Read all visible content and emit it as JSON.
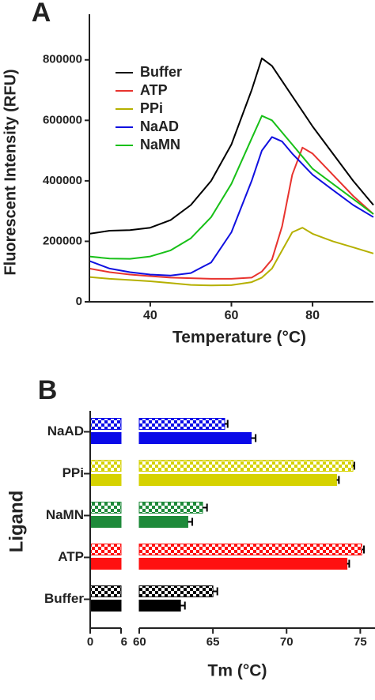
{
  "chart_data": [
    {
      "type": "line",
      "label": "A",
      "xlabel": "Temperature (°C)",
      "ylabel": "Fluorescent Intensity (RFU)",
      "x": [
        25,
        30,
        35,
        40,
        45,
        50,
        55,
        60,
        65,
        67.5,
        70,
        72.5,
        75,
        77.5,
        80,
        85,
        90,
        95
      ],
      "series": [
        {
          "name": "Buffer",
          "color": "#000000",
          "values": [
            225000,
            235000,
            237000,
            245000,
            270000,
            320000,
            400000,
            520000,
            700000,
            805000,
            780000,
            730000,
            680000,
            630000,
            580000,
            490000,
            400000,
            320000
          ]
        },
        {
          "name": "ATP",
          "color": "#e8332e",
          "values": [
            110000,
            98000,
            90000,
            85000,
            80000,
            78000,
            76000,
            76000,
            80000,
            100000,
            140000,
            250000,
            420000,
            510000,
            490000,
            420000,
            350000,
            290000
          ]
        },
        {
          "name": "PPi",
          "color": "#b5b000",
          "values": [
            82000,
            76000,
            72000,
            68000,
            62000,
            56000,
            54000,
            55000,
            65000,
            80000,
            110000,
            170000,
            230000,
            245000,
            225000,
            200000,
            180000,
            160000
          ]
        },
        {
          "name": "NaAD",
          "color": "#1010e0",
          "values": [
            135000,
            110000,
            98000,
            90000,
            87000,
            95000,
            130000,
            230000,
            400000,
            500000,
            545000,
            530000,
            490000,
            455000,
            420000,
            370000,
            320000,
            280000
          ]
        },
        {
          "name": "NaMN",
          "color": "#18c018",
          "values": [
            150000,
            143000,
            142000,
            150000,
            170000,
            210000,
            280000,
            390000,
            540000,
            615000,
            600000,
            560000,
            520000,
            480000,
            440000,
            390000,
            340000,
            290000
          ]
        }
      ],
      "xlim": [
        25,
        95
      ],
      "xticks": [
        40,
        60,
        80
      ],
      "ylim": [
        0,
        930000
      ],
      "yticks": [
        0,
        200000,
        400000,
        600000,
        800000
      ],
      "legend": "top-left"
    },
    {
      "type": "hbar",
      "label": "B",
      "xlabel": "Tm (°C)",
      "ylabel": "Ligand",
      "categories": [
        "NaAD",
        "PPi",
        "NaMN",
        "ATP",
        "Buffer"
      ],
      "colors": [
        "#0a0ae8",
        "#d6d200",
        "#1e8a3a",
        "#ff1010",
        "#000000"
      ],
      "series": [
        {
          "pattern": "checkered",
          "values": [
            65.8,
            74.5,
            64.3,
            75.1,
            65.0
          ],
          "errors": [
            0.2,
            0.1,
            0.3,
            0.15,
            0.3
          ]
        },
        {
          "pattern": "solid",
          "values": [
            67.6,
            73.4,
            63.3,
            74.1,
            62.8
          ],
          "errors": [
            0.3,
            0.15,
            0.3,
            0.15,
            0.3
          ]
        }
      ],
      "xlim": [
        0,
        76
      ],
      "xbreak": [
        6,
        60
      ],
      "xticks": [
        0,
        6,
        60,
        65,
        70,
        75
      ]
    }
  ]
}
